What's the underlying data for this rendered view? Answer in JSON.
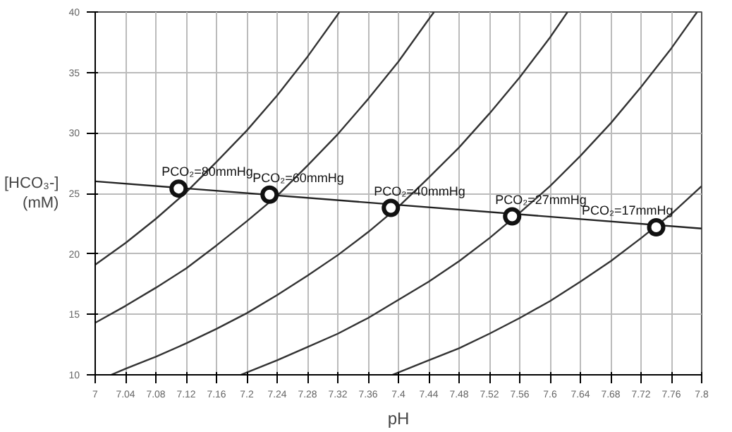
{
  "chart_data": {
    "type": "line",
    "xlabel": "pH",
    "ylabel": "[HCO₃-] (mM)",
    "xlim": [
      7,
      7.8
    ],
    "ylim": [
      10,
      40
    ],
    "xticks": [
      7,
      7.04,
      7.08,
      7.12,
      7.16,
      7.2,
      7.24,
      7.28,
      7.32,
      7.36,
      7.4,
      7.44,
      7.48,
      7.52,
      7.56,
      7.6,
      7.64,
      7.68,
      7.72,
      7.76,
      7.8
    ],
    "yticks": [
      10,
      15,
      20,
      25,
      30,
      35,
      40
    ],
    "grid": true,
    "line_style": "solid",
    "series": [
      {
        "color": "#333333",
        "x": [
          7.0,
          7.04,
          7.08,
          7.12,
          7.16,
          7.2,
          7.24,
          7.28,
          7.32,
          7.322
        ],
        "values": [
          19.1,
          20.9,
          22.9,
          25.1,
          27.6,
          30.2,
          33.1,
          36.3,
          39.8,
          40
        ]
      },
      {
        "color": "#333333",
        "x": [
          7.0,
          7.04,
          7.08,
          7.12,
          7.16,
          7.2,
          7.24,
          7.28,
          7.32,
          7.36,
          7.4,
          7.44,
          7.447
        ],
        "values": [
          14.3,
          15.7,
          17.2,
          18.8,
          20.7,
          22.7,
          24.8,
          27.3,
          29.9,
          32.8,
          35.9,
          39.4,
          40
        ]
      },
      {
        "color": "#333333",
        "x": [
          7.021,
          7.04,
          7.08,
          7.12,
          7.16,
          7.2,
          7.24,
          7.28,
          7.32,
          7.36,
          7.4,
          7.44,
          7.48,
          7.52,
          7.56,
          7.6,
          7.623
        ],
        "values": [
          10,
          10.5,
          11.5,
          12.6,
          13.8,
          15.1,
          16.6,
          18.2,
          19.9,
          21.8,
          23.9,
          26.3,
          28.8,
          31.6,
          34.6,
          37.9,
          40
        ]
      },
      {
        "color": "#333333",
        "x": [
          7.192,
          7.2,
          7.24,
          7.28,
          7.32,
          7.36,
          7.4,
          7.44,
          7.48,
          7.52,
          7.56,
          7.6,
          7.64,
          7.68,
          7.72,
          7.76,
          7.794
        ],
        "values": [
          10,
          10.2,
          11.2,
          12.3,
          13.4,
          14.7,
          16.2,
          17.7,
          19.4,
          21.3,
          23.4,
          25.6,
          28.1,
          30.8,
          33.8,
          37.0,
          40
        ]
      },
      {
        "color": "#333333",
        "x": [
          7.392,
          7.4,
          7.44,
          7.48,
          7.52,
          7.56,
          7.6,
          7.64,
          7.68,
          7.72,
          7.76,
          7.8
        ],
        "values": [
          10,
          10.2,
          11.2,
          12.2,
          13.4,
          14.7,
          16.1,
          17.7,
          19.4,
          21.3,
          23.3,
          25.6
        ]
      },
      {
        "color": "#222222",
        "x": [
          7.0,
          7.8
        ],
        "values": [
          26.0,
          22.1
        ]
      },
      {
        "type": "scatter",
        "marker": "circle",
        "color": "#111111",
        "x": [
          7.11,
          7.23,
          7.39,
          7.55,
          7.74
        ],
        "values": [
          25.4,
          24.9,
          23.8,
          23.1,
          22.2
        ]
      }
    ],
    "annotations": [
      {
        "text": "PCO₂=80mmHg",
        "x": 7.11,
        "y": 25.4
      },
      {
        "text": "PCO₂=60mmHg",
        "x": 7.23,
        "y": 24.9
      },
      {
        "text": "PCO₂=40mmHg",
        "x": 7.39,
        "y": 23.8
      },
      {
        "text": "PCO₂=27mmHg",
        "x": 7.55,
        "y": 23.1
      },
      {
        "text": "PCO₂=17mmHg",
        "x": 7.74,
        "y": 22.2
      }
    ]
  }
}
